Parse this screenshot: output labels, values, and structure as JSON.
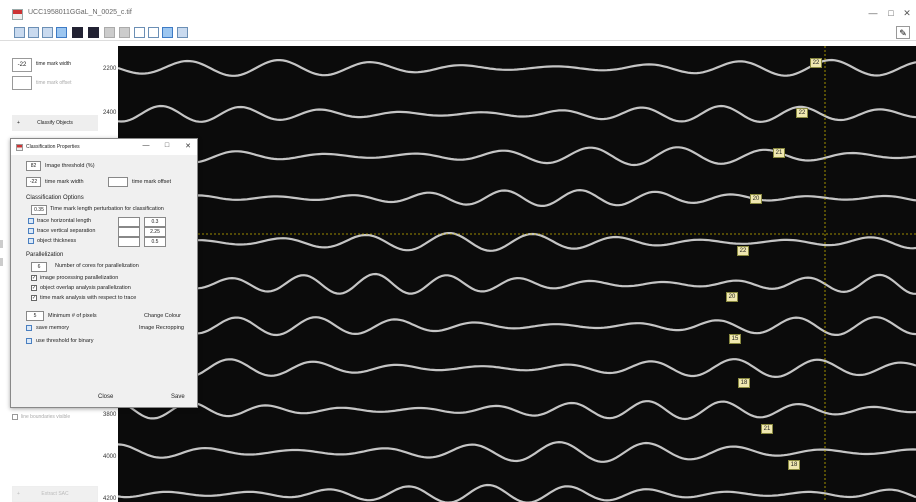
{
  "window": {
    "title": "UCC1958011GGaL_N_0025_c.tif",
    "minimize": "—",
    "maximize": "□",
    "close": "✕"
  },
  "toolbar": {
    "icons": [
      "save-icon",
      "open-icon",
      "grid-icon",
      "color-icon",
      "contrast-icon",
      "invert-icon",
      "square-icon",
      "square-icon",
      "zoom-in-icon",
      "zoom-out-icon",
      "pan-icon",
      "picture-icon"
    ],
    "pen": "✎"
  },
  "left_panel": {
    "time_mark_width_value": "-22",
    "time_mark_width_label": "time mark width",
    "time_mark_offset_value": "",
    "time_mark_offset_label": "time mark offset",
    "classify_button_prefix": "+",
    "classify_button": "Classify Objects",
    "line_boundaries_label": "line boundaries visible",
    "extract_prefix": "+",
    "extract_button": "Extract SAC",
    "ticks": [
      "2200",
      "2400",
      "3800",
      "4000",
      "4200"
    ]
  },
  "image": {
    "time_marks": [
      "22",
      "22",
      "21",
      "20",
      "22",
      "20",
      "15",
      "18",
      "21",
      "18"
    ],
    "colors": {
      "crosshair": "#c8b400",
      "background": "#0b0b0b",
      "trace": "#e6e6e6"
    }
  },
  "dialog": {
    "title": "Classification Properties",
    "minimize": "—",
    "maximize": "□",
    "close": "✕",
    "image_threshold_value": "82",
    "image_threshold_label": "Image threshold (%)",
    "time_mark_width_value": "-22",
    "time_mark_width_label": "time mark width",
    "time_mark_offset_value": "",
    "time_mark_offset_label": "time mark offset",
    "classification_header": "Classification Options",
    "perturbation_value": "0.35",
    "perturbation_label": "Time mark length perturbation for classification",
    "options": [
      {
        "label": "trace horizontal length",
        "value": "0.3"
      },
      {
        "label": "trace vertical separation",
        "value": "2.25"
      },
      {
        "label": "object thickness",
        "value": "0.5"
      }
    ],
    "parallelization_header": "Parallelization",
    "cores_value": "6",
    "cores_label": "Number of cores for parallelization",
    "parallel_options": [
      {
        "label": "image processing parallelization",
        "checked": true
      },
      {
        "label": "object overlap analysis parallelization",
        "checked": true
      },
      {
        "label": "time mark analysis with respect to trace",
        "checked": true
      }
    ],
    "min_pixels_value": "5",
    "min_pixels_label": "Minimum # of pixels",
    "change_colour": "Change Colour",
    "save_memory_label": "save memory",
    "image_recropping": "Image Recropping",
    "use_threshold_label": "use threshold for binary",
    "close_button": "Close",
    "save_button": "Save",
    "check_mark": "✓"
  }
}
